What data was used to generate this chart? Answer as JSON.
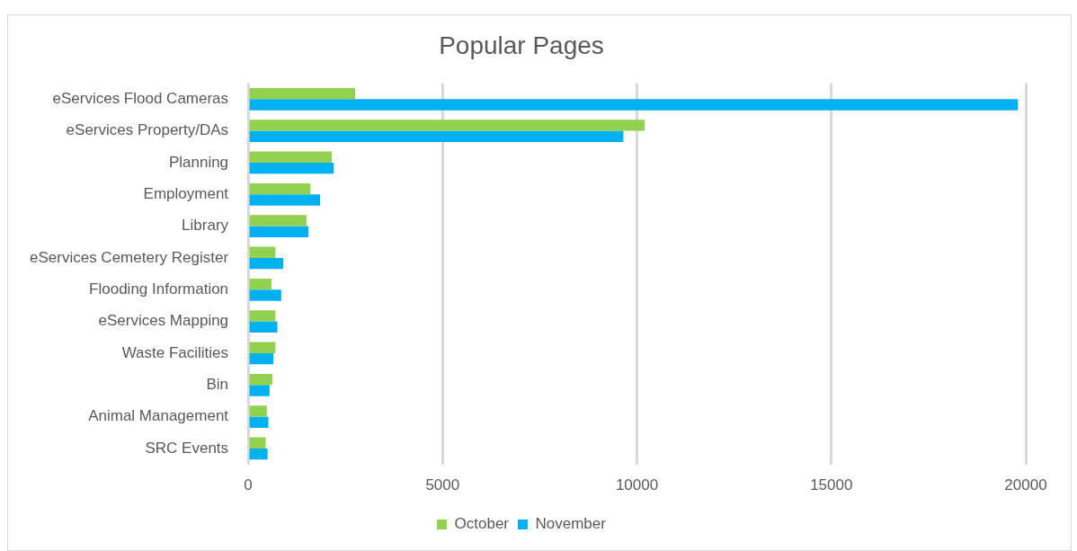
{
  "chart_data": {
    "type": "bar",
    "orientation": "horizontal",
    "title": "Popular Pages",
    "categories": [
      "eServices Flood Cameras",
      "eServices Property/DAs",
      "Planning",
      "Employment",
      "Library",
      "eServices Cemetery Register",
      "Flooding Information",
      "eServices Mapping",
      "Waste Facilities",
      "Bin",
      "Animal Management",
      "SRC Events"
    ],
    "series": [
      {
        "name": "October",
        "color": "#92d050",
        "values": [
          2750,
          10200,
          2150,
          1600,
          1500,
          700,
          600,
          700,
          700,
          620,
          480,
          450
        ]
      },
      {
        "name": "November",
        "color": "#00b0f0",
        "values": [
          19800,
          9650,
          2200,
          1850,
          1550,
          900,
          850,
          750,
          650,
          550,
          520,
          500
        ]
      }
    ],
    "xlim": [
      0,
      20000
    ],
    "xticks": [
      0,
      5000,
      10000,
      15000,
      20000
    ],
    "grid": "x",
    "legend": "bottom"
  }
}
